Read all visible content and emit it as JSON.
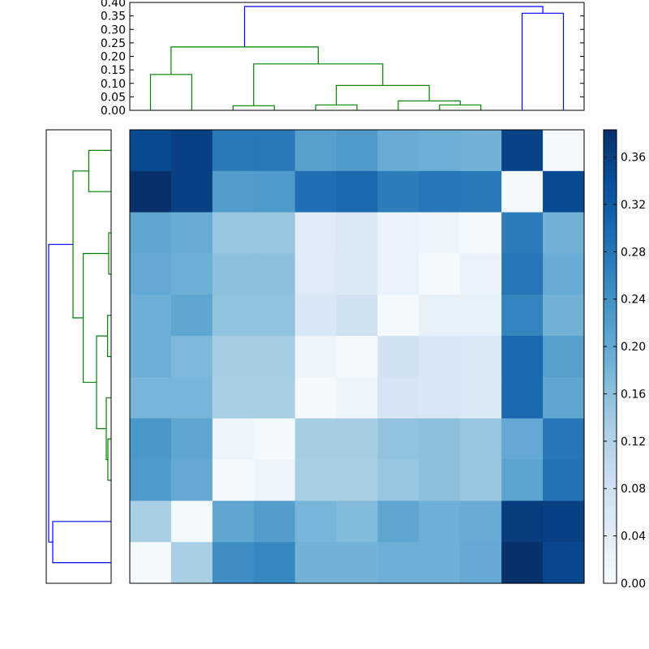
{
  "chart_data": [
    {
      "type": "dendrogram",
      "orientation": "top",
      "ylim": [
        0,
        0.4
      ],
      "yticks": [
        {
          "value": 0.0,
          "label": "0.00"
        },
        {
          "value": 0.05,
          "label": "0.05"
        },
        {
          "value": 0.1,
          "label": "0.10"
        },
        {
          "value": 0.15,
          "label": "0.15"
        },
        {
          "value": 0.2,
          "label": "0.20"
        },
        {
          "value": 0.25,
          "label": "0.25"
        },
        {
          "value": 0.3,
          "label": "0.30"
        },
        {
          "value": 0.35,
          "label": "0.35"
        },
        {
          "value": 0.4,
          "label": "0.40"
        }
      ],
      "leaf_count": 11,
      "links": [
        {
          "x": [
            0.5,
            0.5,
            1.5,
            1.5
          ],
          "y": [
            0,
            0.133,
            0.133,
            0
          ],
          "color": "#008000"
        },
        {
          "x": [
            2.5,
            2.5,
            3.5,
            3.5
          ],
          "y": [
            0,
            0.017,
            0.017,
            0
          ],
          "color": "#008000"
        },
        {
          "x": [
            4.5,
            4.5,
            5.5,
            5.5
          ],
          "y": [
            0,
            0.02,
            0.02,
            0
          ],
          "color": "#008000"
        },
        {
          "x": [
            7.5,
            7.5,
            8.5,
            8.5
          ],
          "y": [
            0,
            0.02,
            0.02,
            0
          ],
          "color": "#008000"
        },
        {
          "x": [
            6.5,
            6.5,
            8.0,
            8.0
          ],
          "y": [
            0,
            0.035,
            0.035,
            0.02
          ],
          "color": "#008000"
        },
        {
          "x": [
            5.0,
            5.0,
            7.25,
            7.25
          ],
          "y": [
            0.02,
            0.092,
            0.092,
            0.035
          ],
          "color": "#008000"
        },
        {
          "x": [
            3.0,
            3.0,
            6.125,
            6.125
          ],
          "y": [
            0.017,
            0.172,
            0.172,
            0.092
          ],
          "color": "#008000"
        },
        {
          "x": [
            1.0,
            1.0,
            4.5625,
            4.5625
          ],
          "y": [
            0.133,
            0.235,
            0.235,
            0.172
          ],
          "color": "#008000"
        },
        {
          "x": [
            9.5,
            9.5,
            10.5,
            10.5
          ],
          "y": [
            0,
            0.36,
            0.36,
            0
          ],
          "color": "#0000ff"
        },
        {
          "x": [
            2.78,
            2.78,
            10.0,
            10.0
          ],
          "y": [
            0.235,
            0.385,
            0.385,
            0.36
          ],
          "color": "#0000ff"
        }
      ]
    },
    {
      "type": "dendrogram",
      "orientation": "left",
      "xlim": [
        0,
        0.4
      ],
      "leaf_count": 11,
      "links": [
        {
          "x": [
            0,
            0.138,
            0.138,
            0
          ],
          "y": [
            0.5,
            0.5,
            1.5,
            1.5
          ],
          "color": "#008000"
        },
        {
          "x": [
            0,
            0.015,
            0.015,
            0
          ],
          "y": [
            2.5,
            2.5,
            3.5,
            3.5
          ],
          "color": "#008000"
        },
        {
          "x": [
            0,
            0.022,
            0.022,
            0
          ],
          "y": [
            4.5,
            4.5,
            5.5,
            5.5
          ],
          "color": "#008000"
        },
        {
          "x": [
            0,
            0.02,
            0.02,
            0
          ],
          "y": [
            7.5,
            7.5,
            8.5,
            8.5
          ],
          "color": "#008000"
        },
        {
          "x": [
            0.02,
            0.03,
            0.03,
            0
          ],
          "y": [
            8.0,
            8.0,
            6.5,
            6.5
          ],
          "color": "#008000"
        },
        {
          "x": [
            0.022,
            0.09,
            0.09,
            0.03
          ],
          "y": [
            5.0,
            5.0,
            7.25,
            7.25
          ],
          "color": "#008000"
        },
        {
          "x": [
            0.015,
            0.172,
            0.172,
            0.09
          ],
          "y": [
            3.0,
            3.0,
            6.125,
            6.125
          ],
          "color": "#008000"
        },
        {
          "x": [
            0.138,
            0.235,
            0.235,
            0.172
          ],
          "y": [
            1.0,
            1.0,
            4.5625,
            4.5625
          ],
          "color": "#008000"
        },
        {
          "x": [
            0,
            0.36,
            0.36,
            0
          ],
          "y": [
            9.5,
            9.5,
            10.5,
            10.5
          ],
          "color": "#0000ff"
        },
        {
          "x": [
            0.235,
            0.385,
            0.385,
            0.36
          ],
          "y": [
            2.78,
            2.78,
            10.0,
            10.0
          ],
          "color": "#0000ff"
        }
      ]
    },
    {
      "type": "heatmap",
      "colormap": "Blues",
      "vmin": 0.0,
      "vmax": 0.383,
      "rows": 11,
      "cols": 11,
      "values": [
        [
          0.345,
          0.36,
          0.275,
          0.275,
          0.215,
          0.225,
          0.195,
          0.19,
          0.185,
          0.355,
          0.005
        ],
        [
          0.383,
          0.36,
          0.22,
          0.225,
          0.29,
          0.3,
          0.27,
          0.28,
          0.275,
          0.005,
          0.345
        ],
        [
          0.205,
          0.195,
          0.15,
          0.15,
          0.045,
          0.055,
          0.025,
          0.02,
          0.005,
          0.27,
          0.185
        ],
        [
          0.2,
          0.19,
          0.16,
          0.16,
          0.05,
          0.055,
          0.025,
          0.005,
          0.025,
          0.28,
          0.195
        ],
        [
          0.19,
          0.205,
          0.155,
          0.155,
          0.06,
          0.075,
          0.005,
          0.03,
          0.03,
          0.26,
          0.185
        ],
        [
          0.19,
          0.175,
          0.135,
          0.135,
          0.02,
          0.005,
          0.075,
          0.06,
          0.055,
          0.3,
          0.215
        ],
        [
          0.18,
          0.18,
          0.13,
          0.13,
          0.005,
          0.02,
          0.065,
          0.06,
          0.055,
          0.3,
          0.205
        ],
        [
          0.23,
          0.205,
          0.02,
          0.005,
          0.135,
          0.135,
          0.155,
          0.16,
          0.15,
          0.2,
          0.28
        ],
        [
          0.225,
          0.2,
          0.005,
          0.02,
          0.13,
          0.13,
          0.15,
          0.16,
          0.15,
          0.21,
          0.285
        ],
        [
          0.13,
          0.005,
          0.205,
          0.22,
          0.18,
          0.17,
          0.205,
          0.19,
          0.195,
          0.365,
          0.36
        ],
        [
          0.005,
          0.13,
          0.245,
          0.255,
          0.185,
          0.185,
          0.19,
          0.19,
          0.2,
          0.383,
          0.35
        ]
      ]
    },
    {
      "type": "colorbar",
      "range": [
        0.0,
        0.383
      ],
      "ticks": [
        {
          "value": 0.0,
          "label": "0.00"
        },
        {
          "value": 0.04,
          "label": "0.04"
        },
        {
          "value": 0.08,
          "label": "0.08"
        },
        {
          "value": 0.12,
          "label": "0.12"
        },
        {
          "value": 0.16,
          "label": "0.16"
        },
        {
          "value": 0.2,
          "label": "0.20"
        },
        {
          "value": 0.24,
          "label": "0.24"
        },
        {
          "value": 0.28,
          "label": "0.28"
        },
        {
          "value": 0.32,
          "label": "0.32"
        },
        {
          "value": 0.36,
          "label": "0.36"
        }
      ]
    }
  ]
}
